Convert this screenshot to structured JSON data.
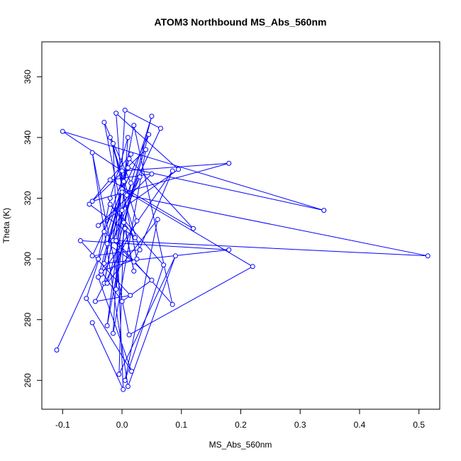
{
  "chart_data": {
    "type": "line",
    "title": "ATOM3 Northbound MS_Abs_560nm",
    "xlabel": "MS_Abs_560nm",
    "ylabel": "Theta (K)",
    "xlim": [
      -0.135,
      0.535
    ],
    "ylim": [
      250.5,
      371.5
    ],
    "xticks": [
      -0.1,
      0.0,
      0.1,
      0.2,
      0.3,
      0.4,
      0.5
    ],
    "xtick_labels": [
      "-0.1",
      "0.0",
      "0.1",
      "0.2",
      "0.3",
      "0.4",
      "0.5"
    ],
    "yticks": [
      260,
      280,
      300,
      320,
      340,
      360
    ],
    "ytick_labels": [
      "260",
      "280",
      "300",
      "320",
      "340",
      "360"
    ],
    "grid": false,
    "marker": "open-circle",
    "series": [
      {
        "color": "#0000ff",
        "x": [
          -0.11,
          -0.04,
          -0.02,
          0.01,
          -0.01,
          0.015,
          -0.03,
          0.02,
          0.005,
          -0.025,
          0.0,
          0.03,
          -0.015,
          0.05,
          0.003,
          -0.005,
          0.09,
          0.01,
          -0.05,
          0.012,
          0.22,
          0.0,
          -0.03,
          0.18,
          -0.07,
          0.014,
          -0.045,
          0.025,
          -0.02,
          0.008,
          0.515,
          -0.01,
          0.085,
          0.02,
          -0.03,
          0.003,
          -0.06,
          0.016,
          -0.04,
          0.01,
          0.34,
          -0.1,
          0.0,
          0.18,
          -0.05,
          0.04,
          -0.015,
          0.005,
          0.065,
          -0.025,
          0.02,
          0.085,
          -0.035,
          0.012,
          0.12,
          -0.02,
          0.05,
          -0.04,
          0.095,
          -0.01,
          0.0,
          0.03,
          -0.05,
          0.045,
          -0.025,
          0.06,
          0.005,
          0.07,
          -0.02,
          0.022,
          -0.055,
          0.015,
          -0.03,
          0.05,
          0.0,
          -0.035,
          0.025,
          -0.015,
          0.002,
          -0.05
        ],
        "y": [
          270.0,
          300.0,
          320.0,
          340.0,
          290.0,
          325.0,
          345.0,
          296.0,
          310.0,
          278.0,
          316.0,
          327.0,
          306.0,
          347.0,
          312.0,
          262.0,
          301.0,
          258.0,
          335.0,
          275.0,
          297.5,
          323.0,
          298.5,
          303.0,
          306.0,
          288.0,
          286.0,
          312.5,
          340.0,
          321.0,
          301.0,
          306.0,
          285.0,
          344.0,
          292.0,
          325.5,
          287.0,
          263.0,
          294.0,
          330.0,
          316.0,
          342.0,
          329.0,
          331.5,
          319.0,
          336.0,
          275.5,
          349.0,
          343.0,
          305.0,
          299.0,
          329.0,
          295.0,
          333.0,
          310.0,
          326.0,
          328.0,
          311.0,
          329.5,
          348.0,
          322.0,
          303.0,
          301.0,
          341.0,
          292.0,
          313.0,
          260.0,
          298.0,
          318.0,
          307.0,
          318.0,
          334.5,
          309.0,
          293.0,
          286.0,
          296.0,
          300.0,
          338.0,
          257.0,
          279.0
        ]
      }
    ]
  }
}
